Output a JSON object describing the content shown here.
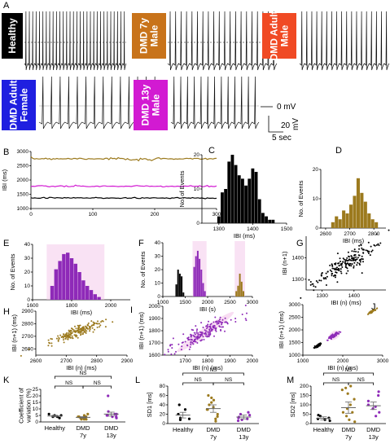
{
  "panels": {
    "A": {
      "letter": "A"
    },
    "B": {
      "letter": "B"
    },
    "C": {
      "letter": "C"
    },
    "D": {
      "letter": "D"
    },
    "E": {
      "letter": "E"
    },
    "F": {
      "letter": "F"
    },
    "G": {
      "letter": "G"
    },
    "H": {
      "letter": "H"
    },
    "I": {
      "letter": "I"
    },
    "J": {
      "letter": "J"
    },
    "K": {
      "letter": "K"
    },
    "L": {
      "letter": "L"
    },
    "M": {
      "letter": "M"
    }
  },
  "traces": [
    {
      "label": "Healthy",
      "box_color": "#000000",
      "lines": [
        "Healthy"
      ]
    },
    {
      "label": "DMD 7y Male",
      "box_color": "#c8731a",
      "lines": [
        "DMD 7y",
        "Male"
      ]
    },
    {
      "label": "DMD Adult Male",
      "box_color": "#f04a24",
      "lines": [
        "DMD Adult",
        "Male"
      ]
    },
    {
      "label": "DMD Adult Female",
      "box_color": "#1f1fe0",
      "lines": [
        "DMD Adult",
        "Female"
      ]
    },
    {
      "label": "DMD 13y Male",
      "box_color": "#d21ad2",
      "lines": [
        "DMD 13y",
        "Male"
      ]
    }
  ],
  "scalebar": {
    "voltage": "0 mV",
    "time": "5 sec",
    "amp": "20",
    "amp_unit": "mV"
  },
  "colors": {
    "healthy": "#000000",
    "dmd7": "#9c7a1e",
    "dmd13": "#8e2ab8",
    "magenta": "#d21ad2",
    "pink": "#f4c6ea"
  },
  "chart_data": [
    {
      "panel": "B",
      "type": "line",
      "xlabel": "",
      "ylabel": "IBI (ms)",
      "xlim": [
        0,
        300
      ],
      "ylim": [
        1000,
        3000
      ],
      "xticks": [
        0,
        100,
        200,
        300
      ],
      "yticks": [
        1000,
        1500,
        2000,
        2500,
        3000
      ],
      "series": [
        {
          "color": "#9c7a1e",
          "level": 2750
        },
        {
          "color": "#d21ad2",
          "level": 1780
        },
        {
          "color": "#000000",
          "level": 1370
        }
      ]
    },
    {
      "panel": "C",
      "type": "bar",
      "xlabel": "IBI (ms)",
      "ylabel": "No. of Events",
      "xlim": [
        1250,
        1500
      ],
      "ylim": [
        0,
        20
      ],
      "xticks": [
        1300,
        1400,
        1500
      ],
      "yticks": [
        0,
        10,
        20
      ],
      "x": [
        1300,
        1310,
        1320,
        1330,
        1340,
        1350,
        1360,
        1370,
        1380,
        1390,
        1400,
        1410,
        1420,
        1430,
        1440,
        1450,
        1460
      ],
      "values": [
        2,
        9,
        10,
        18,
        20,
        17,
        14,
        13,
        11,
        13,
        16,
        15,
        7,
        3,
        2,
        1,
        1
      ]
    },
    {
      "panel": "D",
      "type": "bar",
      "xlabel": "IBI (ms)",
      "ylabel": "No. of Events",
      "xlim": [
        2580,
        2850
      ],
      "ylim": [
        0,
        20
      ],
      "xticks": [
        2600,
        2700,
        2800
      ],
      "yticks": [
        0,
        10,
        20
      ],
      "x": [
        2630,
        2645,
        2660,
        2675,
        2690,
        2705,
        2720,
        2735,
        2750,
        2765,
        2780,
        2795,
        2810
      ],
      "values": [
        2,
        4,
        3,
        6,
        5,
        8,
        11,
        17,
        12,
        9,
        5,
        3,
        2
      ]
    },
    {
      "panel": "E",
      "type": "bar",
      "xlabel": "IBI (ms)",
      "ylabel": "No. of Events",
      "xlim": [
        1600,
        2100
      ],
      "ylim": [
        0,
        40
      ],
      "xticks": [
        1600,
        1800,
        2000
      ],
      "yticks": [
        0,
        10,
        20,
        30,
        40
      ],
      "x": [
        1700,
        1720,
        1740,
        1760,
        1780,
        1800,
        1820,
        1840,
        1860,
        1880,
        1900,
        1920,
        1940
      ],
      "values": [
        10,
        22,
        28,
        33,
        34,
        30,
        26,
        20,
        14,
        10,
        7,
        4,
        2
      ]
    },
    {
      "panel": "F",
      "type": "bar",
      "xlabel": "IBI (s)",
      "ylabel": "No. of Events",
      "xlim": [
        1000,
        3000
      ],
      "ylim": [
        0,
        40
      ],
      "xticks": [
        1000,
        1500,
        2000,
        2500,
        3000
      ],
      "yticks": [
        0,
        10,
        20,
        30,
        40
      ],
      "groups": [
        {
          "color": "#000000",
          "x": [
            1300,
            1340,
            1380,
            1420,
            1460
          ],
          "values": [
            9,
            20,
            17,
            15,
            3
          ]
        },
        {
          "color": "#8e2ab8",
          "x": [
            1700,
            1740,
            1780,
            1820,
            1860,
            1900,
            1940
          ],
          "values": [
            22,
            30,
            34,
            28,
            20,
            10,
            4
          ]
        },
        {
          "color": "#9c7a1e",
          "x": [
            2640,
            2680,
            2720,
            2760,
            2800
          ],
          "values": [
            4,
            8,
            17,
            11,
            4
          ]
        }
      ]
    },
    {
      "panel": "G",
      "type": "scatter",
      "xlabel": "IBI (n) (ms)",
      "ylabel": "IBI (n+1)",
      "xlim": [
        1250,
        1500
      ],
      "ylim": [
        1250,
        1500
      ],
      "xticks": [
        1300,
        1400
      ],
      "yticks": [
        1300,
        1400
      ],
      "color": "#000000",
      "center": [
        1380,
        1380
      ],
      "spread": 45
    },
    {
      "panel": "H",
      "type": "scatter",
      "xlabel": "IBI (n) (ms)",
      "ylabel": "IBI (n+1) (ms)",
      "xlim": [
        2600,
        2900
      ],
      "ylim": [
        2550,
        2900
      ],
      "xticks": [
        2600,
        2700,
        2800,
        2900
      ],
      "yticks": [
        2600,
        2700,
        2800,
        2900
      ],
      "color": "#9c7a1e",
      "center": [
        2730,
        2730
      ],
      "spread": 45
    },
    {
      "panel": "I",
      "type": "scatter",
      "xlabel": "IBI (n) (ms)",
      "ylabel": "IBI (n+1) (ms)",
      "xlim": [
        1600,
        2000
      ],
      "ylim": [
        1600,
        2000
      ],
      "xticks": [
        1700,
        1800,
        1900,
        2000
      ],
      "yticks": [
        1600,
        1700,
        1800,
        1900,
        2000
      ],
      "color": "#8e2ab8",
      "center": [
        1790,
        1790
      ],
      "spread": 70
    },
    {
      "panel": "J",
      "type": "scatter",
      "xlabel": "IBI (n) (ms)",
      "ylabel": "IBI (n+1) (ms)",
      "xlim": [
        1000,
        3000
      ],
      "ylim": [
        1000,
        3000
      ],
      "xticks": [
        1000,
        2000,
        3000
      ],
      "yticks": [
        1000,
        1500,
        2000,
        2500,
        3000
      ],
      "clusters": [
        {
          "color": "#000000",
          "center": [
            1380,
            1380
          ],
          "spread": 45
        },
        {
          "color": "#8e2ab8",
          "center": [
            1790,
            1790
          ],
          "spread": 70
        },
        {
          "color": "#9c7a1e",
          "center": [
            2730,
            2730
          ],
          "spread": 45
        }
      ]
    },
    {
      "panel": "K",
      "type": "scatter",
      "ylabel": "Coefficient of variation (%)",
      "ylim": [
        0,
        25
      ],
      "yticks": [
        0,
        5,
        10,
        15,
        20,
        25
      ],
      "categories": [
        "Healthy",
        "DMD 7y",
        "DMD 13y"
      ],
      "cat_lines": [
        [
          "Healthy"
        ],
        [
          "DMD",
          "7y"
        ],
        [
          "DMD",
          "13y"
        ]
      ],
      "means": [
        4.5,
        3.5,
        6
      ],
      "sems": [
        0.6,
        0.5,
        1.5
      ],
      "points": [
        [
          3,
          4,
          5,
          6,
          4,
          5
        ],
        [
          2,
          3,
          4,
          5,
          3,
          2,
          4,
          6,
          3,
          2,
          4,
          3
        ],
        [
          3,
          4,
          5,
          6,
          8,
          4,
          5,
          6,
          20
        ]
      ],
      "colors": [
        "#000000",
        "#9c7a1e",
        "#8e2ab8"
      ],
      "ns": [
        "NS",
        "NS",
        "NS"
      ]
    },
    {
      "panel": "L",
      "type": "scatter",
      "ylabel": "SD1 [ms]",
      "ylim": [
        0,
        80
      ],
      "yticks": [
        0,
        20,
        40,
        60,
        80
      ],
      "categories": [
        "Healthy",
        "DMD 7y",
        "DMD 13y"
      ],
      "cat_lines": [
        [
          "Healthy"
        ],
        [
          "DMD",
          "7y"
        ],
        [
          "DMD",
          "13y"
        ]
      ],
      "means": [
        18,
        32,
        14
      ],
      "sems": [
        6,
        8,
        4
      ],
      "points": [
        [
          8,
          10,
          12,
          20,
          30,
          40
        ],
        [
          5,
          10,
          15,
          20,
          30,
          35,
          40,
          45,
          50,
          55,
          60,
          30
        ],
        [
          6,
          8,
          10,
          12,
          14,
          18,
          20,
          24
        ]
      ],
      "colors": [
        "#000000",
        "#9c7a1e",
        "#8e2ab8"
      ],
      "ns": [
        "NS",
        "NS",
        "NS"
      ]
    },
    {
      "panel": "M",
      "type": "scatter",
      "ylabel": "SD2 [ms]",
      "ylim": [
        0,
        200
      ],
      "yticks": [
        0,
        50,
        100,
        150,
        200
      ],
      "categories": [
        "Healthy",
        "DMD 7y",
        "DMD 13y"
      ],
      "cat_lines": [
        [
          "Healthy"
        ],
        [
          "DMD",
          "7y"
        ],
        [
          "DMD",
          "13y"
        ]
      ],
      "means": [
        28,
        85,
        95
      ],
      "sems": [
        8,
        30,
        20
      ],
      "points": [
        [
          15,
          20,
          25,
          30,
          40,
          45
        ],
        [
          10,
          20,
          40,
          60,
          80,
          100,
          130,
          160,
          180,
          190,
          200,
          60
        ],
        [
          40,
          60,
          80,
          90,
          100,
          120,
          150,
          170
        ]
      ],
      "colors": [
        "#000000",
        "#9c7a1e",
        "#8e2ab8"
      ],
      "ns": [
        "NS",
        "NS",
        "NS"
      ]
    }
  ]
}
